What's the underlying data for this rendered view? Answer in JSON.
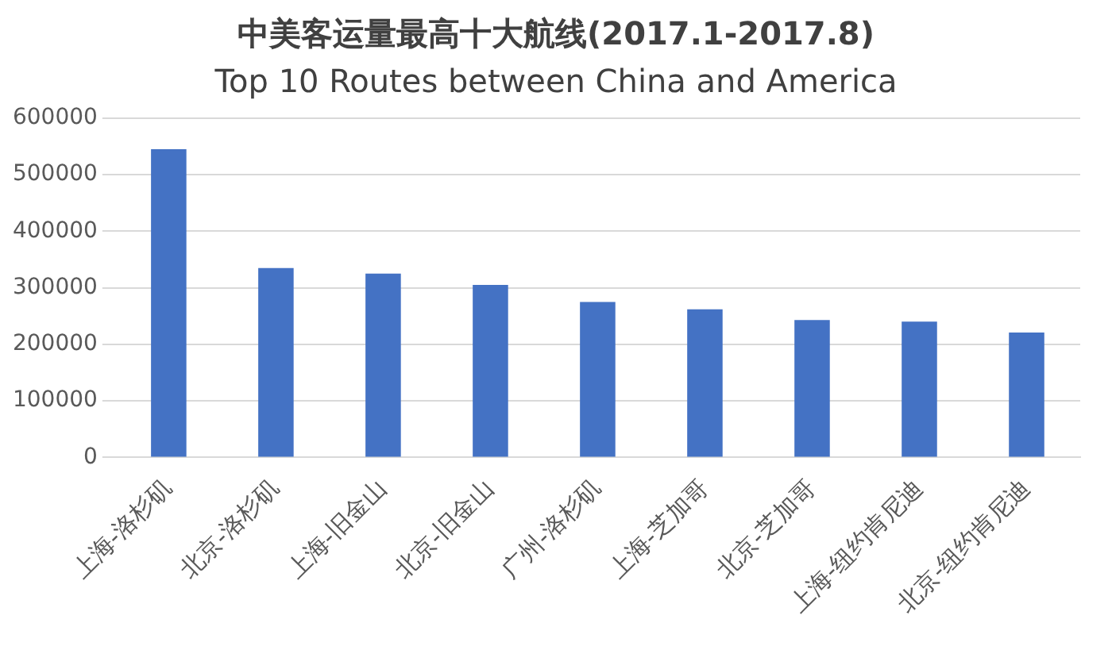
{
  "chart_data": {
    "type": "bar",
    "title": "中美客运量最高十大航线(2017.1-2017.8)",
    "subtitle": "Top 10 Routes between China and America",
    "categories": [
      "上海-洛杉矶",
      "北京-洛杉矶",
      "上海-旧金山",
      "北京-旧金山",
      "广州-洛杉矶",
      "上海-芝加哥",
      "北京-芝加哥",
      "上海-纽约肯尼迪",
      "北京-纽约肯尼迪"
    ],
    "values": [
      545000,
      335000,
      325000,
      305000,
      275000,
      262000,
      243000,
      240000,
      221000
    ],
    "color": "#4472c4",
    "ylim": [
      0,
      600000
    ],
    "yticks": [
      0,
      100000,
      200000,
      300000,
      400000,
      500000,
      600000
    ],
    "grid": "y",
    "legend": false
  }
}
